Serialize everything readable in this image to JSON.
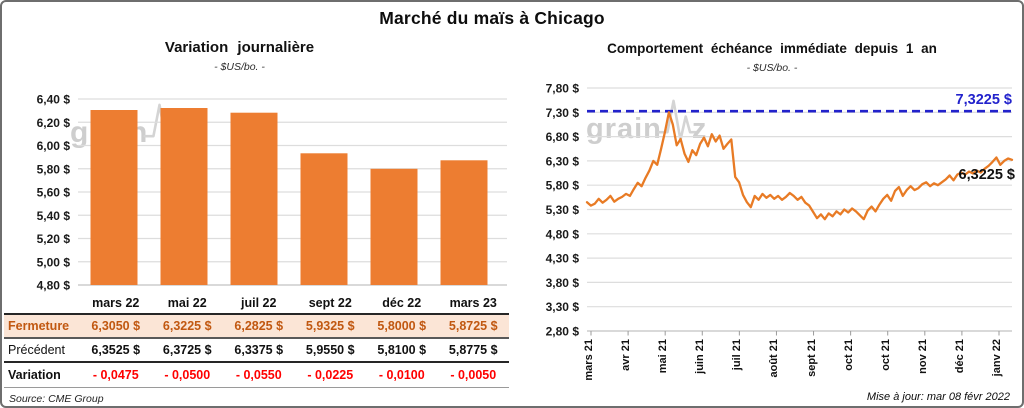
{
  "header": {
    "title": "Marché du maïs à Chicago"
  },
  "watermark": {
    "part1": "grain",
    "part2": "z"
  },
  "footer": {
    "source": "Source: CME Group",
    "updated": "Mise à jour: mar 08 févr 2022"
  },
  "table": {
    "columns": [
      "mars 22",
      "mai 22",
      "juil 22",
      "sept 22",
      "déc 22",
      "mars 23"
    ],
    "rows": [
      {
        "label": "Fermeture",
        "values": [
          "6,3050 $",
          "6,3225 $",
          "6,2825 $",
          "5,9325 $",
          "5,8000 $",
          "5,8725 $"
        ]
      },
      {
        "label": "Précédent",
        "values": [
          "6,3525 $",
          "6,3725 $",
          "6,3375 $",
          "5,9550 $",
          "5,8100 $",
          "5,8775 $"
        ]
      },
      {
        "label": "Variation",
        "values": [
          "- 0,0475",
          "- 0,0500",
          "- 0,0550",
          "- 0,0225",
          "- 0,0100",
          "- 0,0050"
        ]
      }
    ]
  },
  "chart_data": [
    {
      "type": "bar",
      "title": "Variation journalière",
      "subtitle": "- $US/bo. -",
      "categories": [
        "mars 22",
        "mai 22",
        "juil 22",
        "sept 22",
        "déc 22",
        "mars 23"
      ],
      "values": [
        6.305,
        6.3225,
        6.2825,
        5.9325,
        5.8,
        5.8725
      ],
      "ylim": [
        4.8,
        6.4
      ],
      "ytick_step": 0.2,
      "ytick_labels": [
        "6,40 $",
        "6,20 $",
        "6,00 $",
        "5,80 $",
        "5,60 $",
        "5,40 $",
        "5,20 $",
        "5,00 $",
        "4,80 $"
      ],
      "bar_color": "#ED7D31",
      "grid": true,
      "legend": "none"
    },
    {
      "type": "line",
      "title": "Comportement échéance immédiate depuis 1 an",
      "subtitle": "- $US/bo. -",
      "x_labels": [
        "mars 21",
        "avr 21",
        "mai 21",
        "juin 21",
        "juil 21",
        "août 21",
        "sept 21",
        "oct 21",
        "oct 21",
        "nov 21",
        "déc 21",
        "janv 22"
      ],
      "ylim": [
        2.8,
        7.8
      ],
      "ytick_step": 0.5,
      "ytick_labels": [
        "7,80 $",
        "7,30 $",
        "6,80 $",
        "6,30 $",
        "5,80 $",
        "5,30 $",
        "4,80 $",
        "4,30 $",
        "3,80 $",
        "3,30 $",
        "2,80 $"
      ],
      "line_color": "#E87B25",
      "grid": true,
      "legend": "none",
      "reference_line": {
        "value": 7.3225,
        "label": "7,3225 $",
        "color": "#2222CC",
        "style": "dashed"
      },
      "end_label": {
        "value": 6.3225,
        "label": "6,3225 $",
        "color": "#111111"
      },
      "values": [
        5.45,
        5.38,
        5.42,
        5.52,
        5.44,
        5.5,
        5.58,
        5.46,
        5.52,
        5.56,
        5.62,
        5.58,
        5.72,
        5.85,
        5.78,
        5.95,
        6.1,
        6.3,
        6.22,
        6.55,
        6.9,
        7.3,
        7.05,
        6.62,
        6.75,
        6.45,
        6.28,
        6.52,
        6.42,
        6.65,
        6.78,
        6.6,
        6.85,
        6.7,
        6.82,
        6.55,
        6.65,
        6.74,
        5.97,
        5.86,
        5.6,
        5.45,
        5.35,
        5.58,
        5.5,
        5.62,
        5.54,
        5.6,
        5.52,
        5.58,
        5.5,
        5.56,
        5.64,
        5.58,
        5.5,
        5.56,
        5.44,
        5.38,
        5.25,
        5.12,
        5.2,
        5.1,
        5.22,
        5.16,
        5.26,
        5.2,
        5.3,
        5.24,
        5.32,
        5.26,
        5.18,
        5.1,
        5.28,
        5.36,
        5.26,
        5.4,
        5.52,
        5.6,
        5.48,
        5.68,
        5.76,
        5.58,
        5.7,
        5.78,
        5.7,
        5.74,
        5.82,
        5.86,
        5.78,
        5.84,
        5.8,
        5.86,
        5.92,
        6.0,
        5.9,
        6.02,
        6.06,
        6.02,
        6.08,
        6.04,
        6.1,
        6.06,
        6.14,
        6.2,
        6.28,
        6.37,
        6.22,
        6.3,
        6.35,
        6.3225
      ]
    }
  ]
}
